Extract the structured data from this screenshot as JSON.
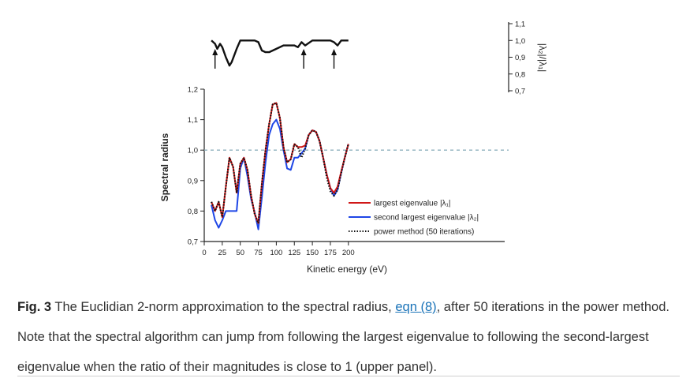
{
  "chart_data": [
    {
      "type": "line",
      "panel": "upper",
      "ylabel": "|λ₂|/|λ₁|",
      "y_axis_side": "right",
      "ylim": [
        0.7,
        1.1
      ],
      "yticks": [
        "0,7",
        "0,8",
        "0,9",
        "1,0",
        "1,1"
      ],
      "xlim": [
        0,
        210
      ],
      "series": [
        {
          "color": "#000000",
          "x": [
            10,
            15,
            18,
            22,
            25,
            30,
            35,
            38,
            45,
            50,
            60,
            70,
            75,
            80,
            85,
            90,
            100,
            110,
            120,
            125,
            130,
            135,
            140,
            150,
            160,
            170,
            175,
            180,
            185,
            190,
            195,
            200
          ],
          "y": [
            1.0,
            0.98,
            0.95,
            0.98,
            0.96,
            0.9,
            0.85,
            0.87,
            0.95,
            1.0,
            1.0,
            1.0,
            0.99,
            0.94,
            0.93,
            0.93,
            0.95,
            0.97,
            0.97,
            0.97,
            0.96,
            0.99,
            0.97,
            1.0,
            1.0,
            1.0,
            1.0,
            0.99,
            0.97,
            1.0,
            1.0,
            1.0
          ]
        }
      ],
      "arrows_at_x": [
        15,
        138,
        180
      ]
    },
    {
      "type": "line",
      "panel": "lower",
      "xlabel": "Kinetic energy (eV)",
      "ylabel": "Spectral radius",
      "xlim": [
        0,
        210
      ],
      "ylim": [
        0.7,
        1.2
      ],
      "xticks": [
        "0",
        "25",
        "50",
        "75",
        "100",
        "125",
        "150",
        "175",
        "200"
      ],
      "yticks": [
        "0,7",
        "0,8",
        "0,9",
        "1,0",
        "1,1",
        "1,2"
      ],
      "reference_line": 1.0,
      "legend_placement": "bottom-right",
      "legend": [
        "largest eigenvalue |λ₁|",
        "second largest eigenvalue |λ₂|",
        "power method (50 iterations)"
      ],
      "x": [
        10,
        15,
        20,
        25,
        30,
        35,
        40,
        45,
        50,
        55,
        60,
        65,
        70,
        75,
        80,
        85,
        90,
        95,
        100,
        105,
        110,
        115,
        120,
        125,
        130,
        135,
        140,
        145,
        150,
        155,
        160,
        165,
        170,
        175,
        180,
        185,
        190,
        195,
        200
      ],
      "series": [
        {
          "name": "largest eigenvalue |λ₁|",
          "color": "#d01818",
          "style": "solid",
          "y": [
            0.83,
            0.8,
            0.83,
            0.78,
            0.88,
            0.975,
            0.945,
            0.86,
            0.955,
            0.975,
            0.935,
            0.85,
            0.79,
            0.76,
            0.89,
            1.0,
            1.085,
            1.15,
            1.155,
            1.105,
            1.01,
            0.96,
            0.97,
            1.02,
            1.01,
            1.01,
            1.015,
            1.05,
            1.065,
            1.06,
            1.03,
            0.975,
            0.92,
            0.875,
            0.86,
            0.88,
            0.93,
            0.975,
            1.02
          ]
        },
        {
          "name": "second largest eigenvalue |λ₂|",
          "color": "#1e46e6",
          "style": "solid",
          "y": [
            0.82,
            0.77,
            0.745,
            0.77,
            0.8,
            0.8,
            0.8,
            0.8,
            0.94,
            0.975,
            0.915,
            0.84,
            0.795,
            0.74,
            0.845,
            0.96,
            1.05,
            1.085,
            1.1,
            1.07,
            1.0,
            0.94,
            0.935,
            0.975,
            0.975,
            0.99,
            1.005,
            1.05,
            1.065,
            1.06,
            1.03,
            0.975,
            0.92,
            0.875,
            0.85,
            0.87,
            0.925,
            0.975,
            1.02
          ]
        },
        {
          "name": "power method (50 iterations)",
          "color": "#111111",
          "style": "dotted",
          "y": [
            0.83,
            0.8,
            0.83,
            0.78,
            0.88,
            0.975,
            0.945,
            0.86,
            0.955,
            0.975,
            0.935,
            0.85,
            0.79,
            0.76,
            0.89,
            1.0,
            1.085,
            1.15,
            1.155,
            1.105,
            1.01,
            0.96,
            0.97,
            1.02,
            1.01,
            0.975,
            1.005,
            1.05,
            1.065,
            1.06,
            1.03,
            0.975,
            0.91,
            0.865,
            0.85,
            0.87,
            0.925,
            0.975,
            1.02
          ]
        }
      ]
    }
  ],
  "caption": {
    "fig_label": "Fig. 3",
    "text_before_link": " The Euclidian 2-norm approximation to the spectral radius, ",
    "link_text": "eqn (8)",
    "text_after_link": ", after 50 iterations in the power method. Note that the spectral algorithm can jump from following the largest eigenvalue to following the second-largest eigenvalue when the ratio of their magnitudes is close to 1 (upper panel)."
  }
}
